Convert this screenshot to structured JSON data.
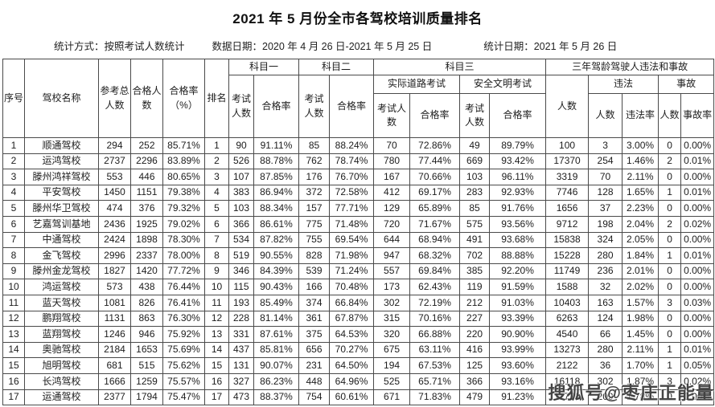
{
  "title": "2021 年 5 月份全市各驾校培训质量排名",
  "meta": {
    "stat_method": "统计方式：按照考试人数统计",
    "data_date": "数据日期：2020 年 4 月 26 日-2021 年 5 月 25 日",
    "stat_date": "统计日期：2021 年 5 月 26 日"
  },
  "table": {
    "headers": {
      "seq": "序号",
      "school": "驾校名称",
      "total": "参考总人数",
      "passed": "合格人数",
      "pass_rate_pct": "合格率（%）",
      "rank": "排名",
      "subject1": "科目一",
      "subject2": "科目二",
      "subject3": "科目三",
      "exam_count": "考试人数",
      "pass_rate": "合格率",
      "road_test": "实际道路考试",
      "civil_test": "安全文明考试",
      "three_year": "三年驾龄驾驶人违法和事故",
      "count": "人数",
      "violation": "违法",
      "violation_rate": "违法率",
      "accident": "事故",
      "accident_rate": "事故率"
    },
    "col_keys": [
      "seq",
      "school",
      "total",
      "passed",
      "pass-rate",
      "rank",
      "s1-exam",
      "s1-rate",
      "s2-exam",
      "s2-rate",
      "road-exam",
      "road-rate",
      "civil-exam",
      "civil-rate",
      "drivers",
      "violation-count",
      "violation-rate",
      "accident-count",
      "accident-rate"
    ],
    "rows": [
      [
        "1",
        "顺通驾校",
        "294",
        "252",
        "85.71%",
        "1",
        "90",
        "91.11%",
        "85",
        "88.24%",
        "70",
        "72.86%",
        "49",
        "89.79%",
        "100",
        "3",
        "3.00%",
        "0",
        "0.00%"
      ],
      [
        "2",
        "运鸿驾校",
        "2737",
        "2296",
        "83.89%",
        "2",
        "526",
        "88.78%",
        "762",
        "78.74%",
        "780",
        "77.44%",
        "669",
        "93.42%",
        "17370",
        "254",
        "1.46%",
        "2",
        "0.01%"
      ],
      [
        "3",
        "滕州鸿祥驾校",
        "553",
        "446",
        "80.65%",
        "3",
        "107",
        "87.85%",
        "176",
        "76.70%",
        "167",
        "70.66%",
        "103",
        "96.11%",
        "3319",
        "70",
        "2.11%",
        "0",
        "0.00%"
      ],
      [
        "4",
        "平安驾校",
        "1450",
        "1151",
        "79.38%",
        "4",
        "383",
        "86.94%",
        "372",
        "72.58%",
        "412",
        "69.17%",
        "283",
        "92.93%",
        "7746",
        "128",
        "1.65%",
        "1",
        "0.01%"
      ],
      [
        "5",
        "滕州华卫驾校",
        "474",
        "376",
        "79.32%",
        "5",
        "103",
        "88.34%",
        "157",
        "77.71%",
        "129",
        "65.89%",
        "85",
        "91.76%",
        "1656",
        "37",
        "2.23%",
        "0",
        "0.00%"
      ],
      [
        "6",
        "艺嘉驾训基地",
        "2436",
        "1925",
        "79.02%",
        "6",
        "366",
        "86.61%",
        "775",
        "71.48%",
        "720",
        "71.67%",
        "575",
        "93.56%",
        "9712",
        "198",
        "2.04%",
        "2",
        "0.02%"
      ],
      [
        "7",
        "中通驾校",
        "2424",
        "1898",
        "78.30%",
        "7",
        "534",
        "87.82%",
        "755",
        "69.54%",
        "644",
        "68.94%",
        "491",
        "93.68%",
        "15838",
        "324",
        "2.05%",
        "0",
        "0.00%"
      ],
      [
        "8",
        "金飞驾校",
        "2996",
        "2337",
        "78.00%",
        "8",
        "519",
        "90.55%",
        "828",
        "71.98%",
        "947",
        "68.32%",
        "702",
        "88.88%",
        "15228",
        "280",
        "1.84%",
        "1",
        "0.01%"
      ],
      [
        "9",
        "滕州金龙驾校",
        "1827",
        "1420",
        "77.72%",
        "9",
        "346",
        "84.39%",
        "539",
        "71.24%",
        "557",
        "69.84%",
        "385",
        "92.20%",
        "11749",
        "236",
        "2.01%",
        "0",
        "0.00%"
      ],
      [
        "10",
        "鸿运驾校",
        "573",
        "438",
        "76.44%",
        "10",
        "115",
        "90.43%",
        "166",
        "70.48%",
        "173",
        "62.43%",
        "119",
        "91.59%",
        "1588",
        "32",
        "2.02%",
        "0",
        "0.00%"
      ],
      [
        "11",
        "蓝天驾校",
        "1081",
        "826",
        "76.41%",
        "11",
        "193",
        "85.49%",
        "374",
        "66.84%",
        "302",
        "72.19%",
        "212",
        "91.03%",
        "10403",
        "163",
        "1.57%",
        "3",
        "0.03%"
      ],
      [
        "12",
        "鹏翔驾校",
        "1131",
        "863",
        "76.30%",
        "12",
        "228",
        "81.14%",
        "361",
        "67.87%",
        "315",
        "70.16%",
        "227",
        "93.39%",
        "6263",
        "124",
        "1.98%",
        "0",
        "0.00%"
      ],
      [
        "13",
        "蓝翔驾校",
        "1246",
        "946",
        "75.92%",
        "13",
        "331",
        "87.61%",
        "375",
        "64.53%",
        "320",
        "66.88%",
        "220",
        "90.90%",
        "4540",
        "66",
        "1.45%",
        "0",
        "0.00%"
      ],
      [
        "14",
        "奥驰驾校",
        "2184",
        "1653",
        "75.69%",
        "14",
        "437",
        "85.81%",
        "656",
        "70.27%",
        "675",
        "63.11%",
        "416",
        "93.99%",
        "13273",
        "280",
        "2.11%",
        "1",
        "0.01%"
      ],
      [
        "15",
        "旭明驾校",
        "681",
        "515",
        "75.62%",
        "15",
        "131",
        "90.07%",
        "231",
        "64.50%",
        "194",
        "67.53%",
        "125",
        "93.60%",
        "2122",
        "36",
        "1.70%",
        "1",
        "0.05%"
      ],
      [
        "16",
        "长鸿驾校",
        "1666",
        "1259",
        "75.57%",
        "16",
        "327",
        "86.23%",
        "448",
        "64.96%",
        "525",
        "65.71%",
        "366",
        "93.16%",
        "16118",
        "302",
        "1.87%",
        "3",
        "0.02%"
      ],
      [
        "17",
        "运通驾校",
        "2377",
        "1794",
        "75.47%",
        "17",
        "473",
        "88.37%",
        "754",
        "60.61%",
        "671",
        "71.83%",
        "479",
        "91.23%",
        "11726",
        "209",
        "1.78%",
        "0",
        "0.00%"
      ]
    ]
  },
  "watermark": "搜狐号@枣庄正能量"
}
